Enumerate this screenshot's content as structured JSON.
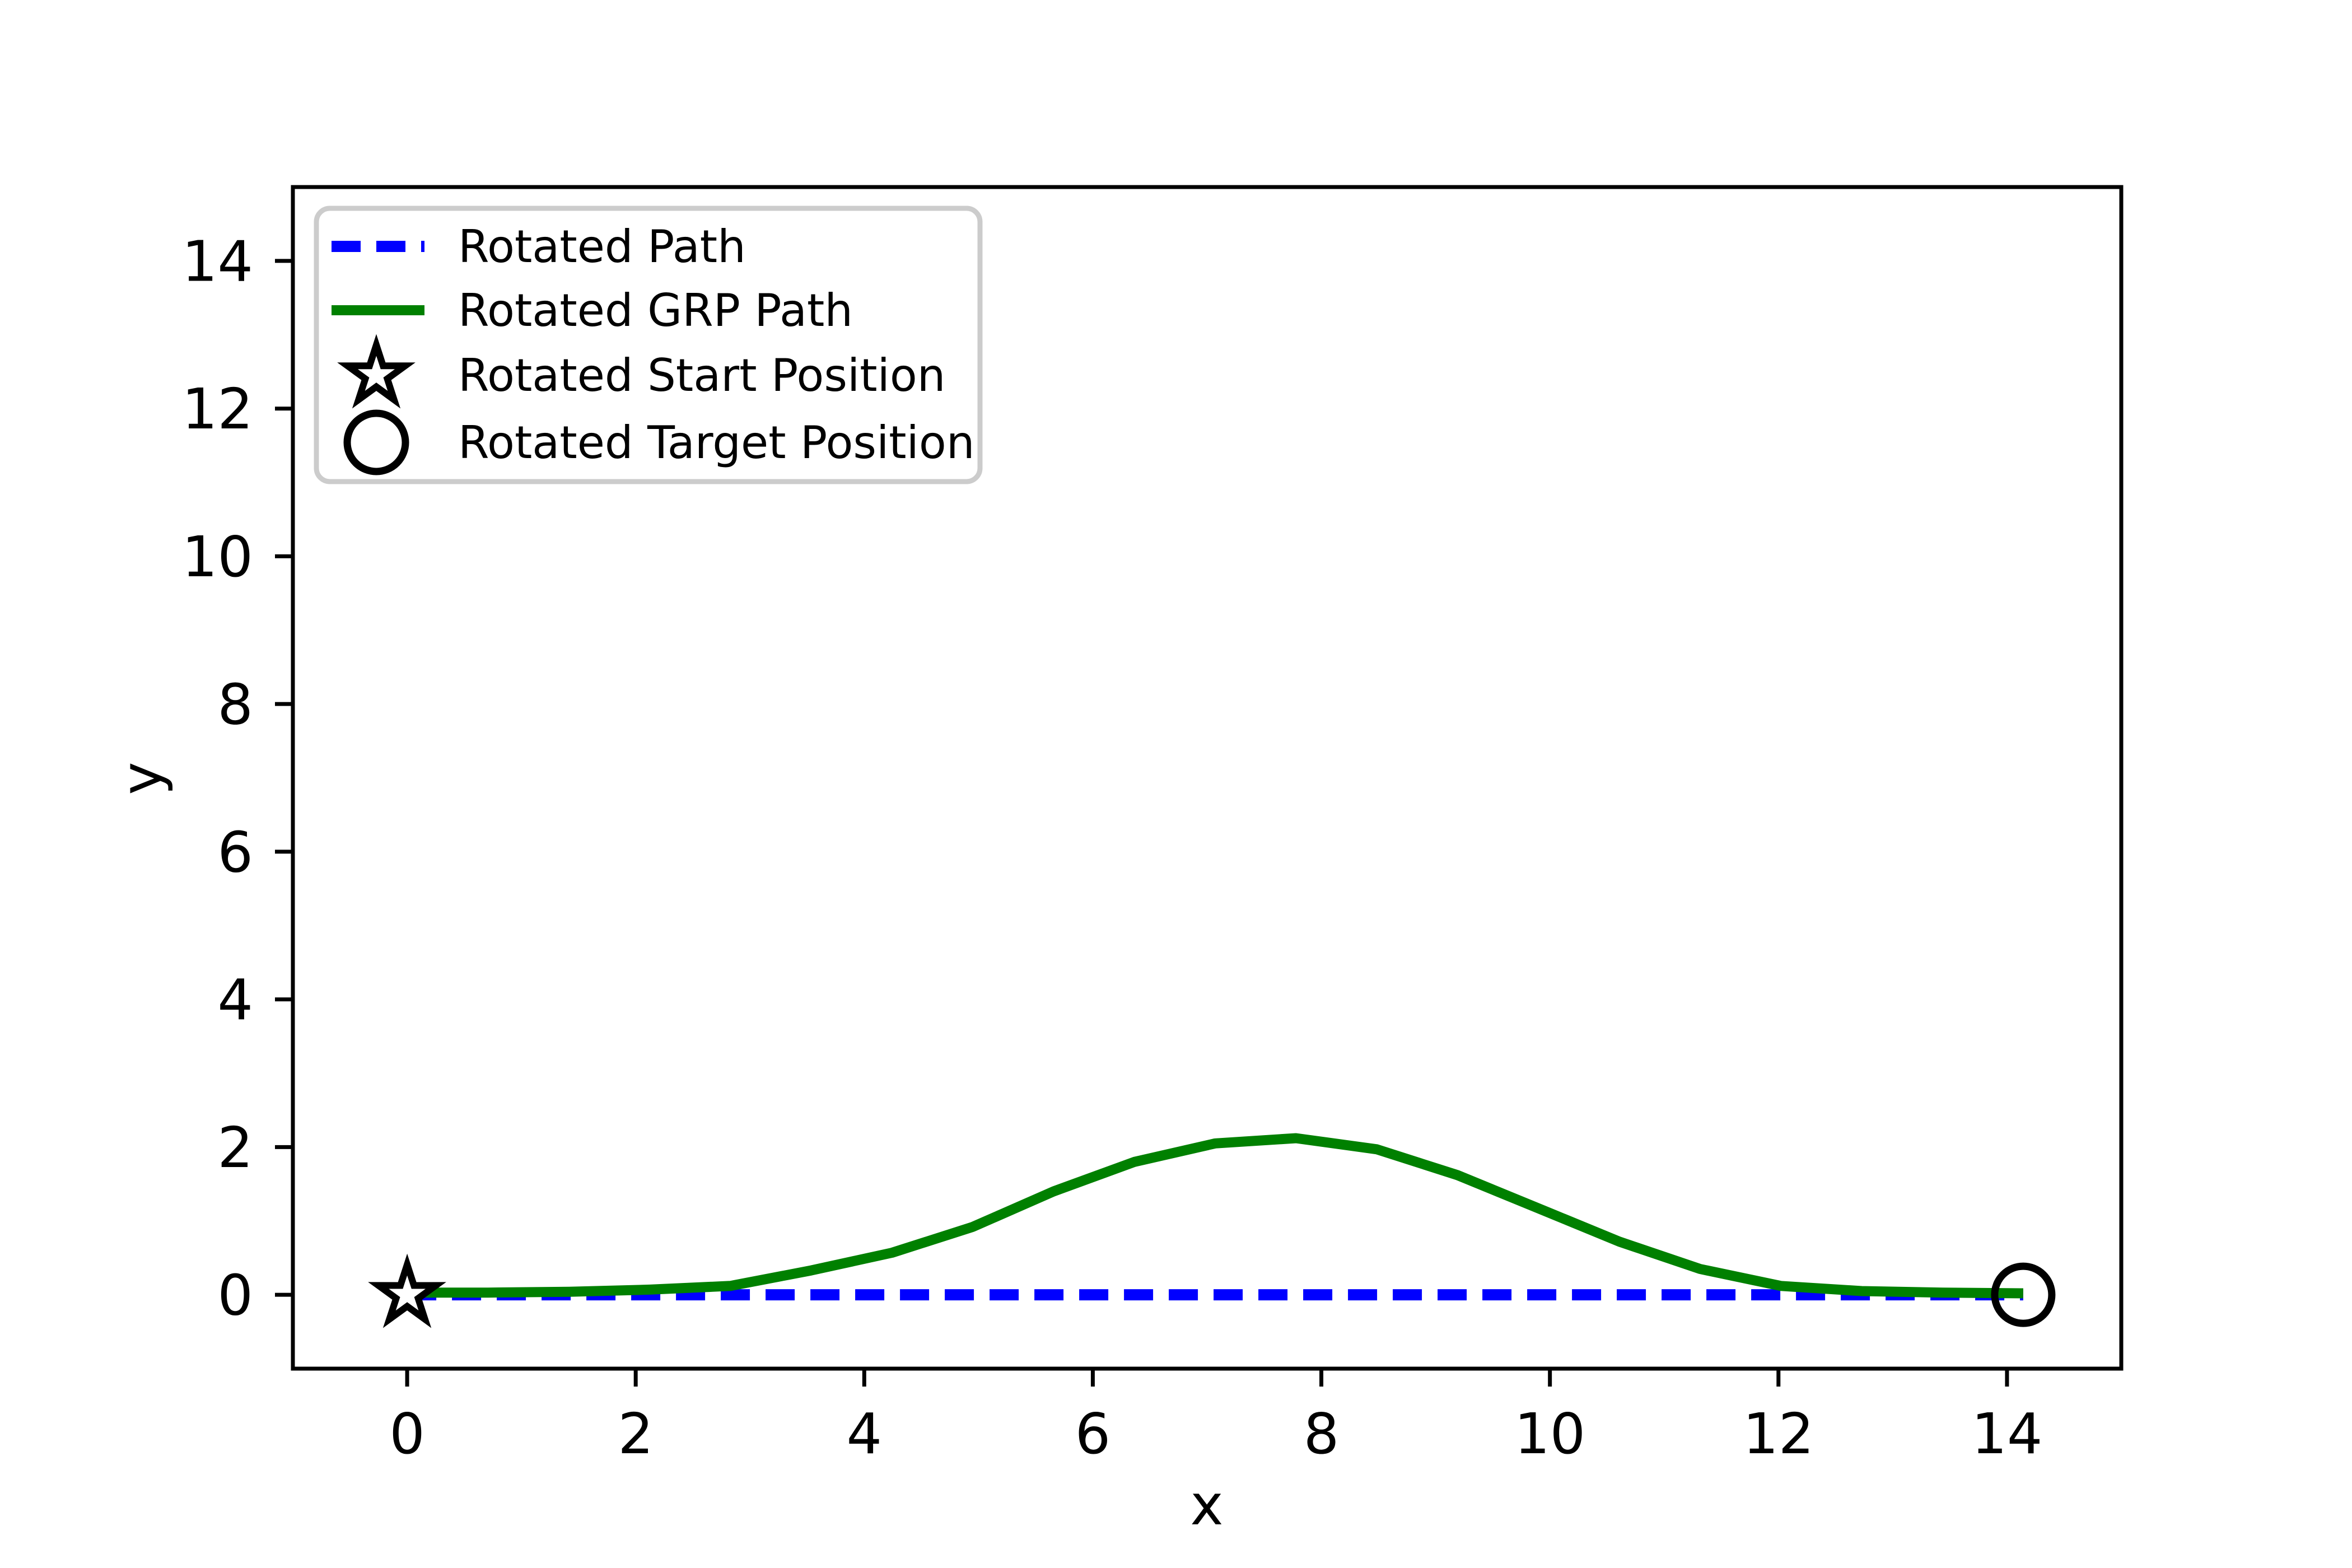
{
  "figure": {
    "background": "#ffffff"
  },
  "colors": {
    "axis": "#000000",
    "legend_border": "#cccccc",
    "rotated_path_blue": "#0000ff",
    "rotated_grp_green": "#008000",
    "marker_black": "#000000"
  },
  "legend": {
    "position": "upper left",
    "entries": [
      {
        "label": "Rotated Path",
        "handle": "dashed-line",
        "color": "#0000ff"
      },
      {
        "label": "Rotated GRP Path",
        "handle": "solid-line",
        "color": "#008000"
      },
      {
        "label": "Rotated Start Position",
        "handle": "star-marker",
        "color": "#000000"
      },
      {
        "label": "Rotated Target Position",
        "handle": "circle-marker",
        "color": "#000000"
      }
    ]
  },
  "chart_data": {
    "type": "line",
    "title": "",
    "xlabel": "x",
    "ylabel": "y",
    "xlim": [
      -1,
      15
    ],
    "ylim": [
      -1,
      15
    ],
    "xticks": [
      0,
      2,
      4,
      6,
      8,
      10,
      12,
      14
    ],
    "yticks": [
      0,
      2,
      4,
      6,
      8,
      10,
      12,
      14
    ],
    "grid": false,
    "legend_position": "upper left",
    "series": [
      {
        "name": "Rotated Path",
        "color": "#0000ff",
        "style": "dashed",
        "width": 20,
        "points": [
          [
            0,
            0
          ],
          [
            14.142,
            0
          ]
        ]
      },
      {
        "name": "Rotated GRP Path",
        "color": "#008000",
        "style": "solid",
        "width": 18,
        "points": [
          [
            0,
            0.03
          ],
          [
            0.707,
            0.03
          ],
          [
            1.414,
            0.04
          ],
          [
            2.121,
            0.07
          ],
          [
            2.828,
            0.12
          ],
          [
            3.536,
            0.33
          ],
          [
            4.243,
            0.57
          ],
          [
            4.95,
            0.92
          ],
          [
            5.657,
            1.4
          ],
          [
            6.364,
            1.8
          ],
          [
            7.071,
            2.05
          ],
          [
            7.778,
            2.12
          ],
          [
            8.485,
            1.97
          ],
          [
            9.192,
            1.62
          ],
          [
            9.9,
            1.17
          ],
          [
            10.607,
            0.72
          ],
          [
            11.314,
            0.35
          ],
          [
            12.021,
            0.12
          ],
          [
            12.728,
            0.05
          ],
          [
            13.435,
            0.03
          ],
          [
            14.142,
            0.02
          ]
        ]
      }
    ],
    "markers": [
      {
        "name": "Rotated Start Position",
        "shape": "star",
        "x": 0,
        "y": 0,
        "edge_color": "#000000",
        "face_color": "#ffffff"
      },
      {
        "name": "Rotated Target Position",
        "shape": "circle",
        "x": 14.142,
        "y": 0,
        "edge_color": "#000000",
        "face_color": "none"
      }
    ]
  }
}
